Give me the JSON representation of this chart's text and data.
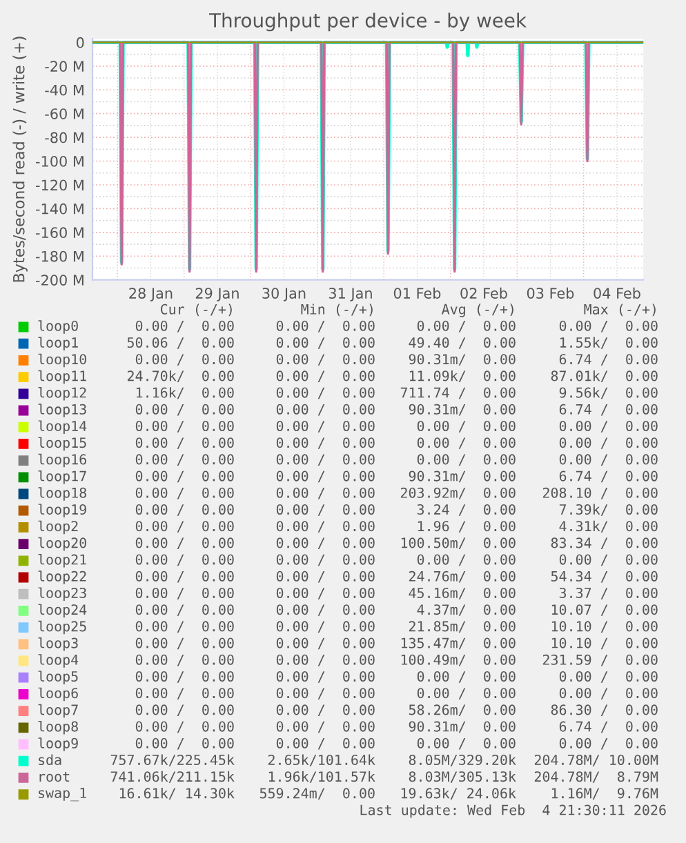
{
  "chart_data": {
    "type": "line",
    "title": "Throughput per device - by week",
    "ylabel": "Bytes/second read (-) / write (+)",
    "xlim": [
      "2026-01-27T15:00",
      "2026-02-04T21:30"
    ],
    "xticks": [
      {
        "value": "2026-01-28T00:00",
        "label": null
      },
      {
        "value": "2026-01-28T12:00",
        "label": "28 Jan"
      },
      {
        "value": "2026-01-29T00:00",
        "label": null
      },
      {
        "value": "2026-01-29T12:00",
        "label": "29 Jan"
      },
      {
        "value": "2026-01-30T00:00",
        "label": null
      },
      {
        "value": "2026-01-30T12:00",
        "label": "30 Jan"
      },
      {
        "value": "2026-01-31T00:00",
        "label": null
      },
      {
        "value": "2026-01-31T12:00",
        "label": "31 Jan"
      },
      {
        "value": "2026-02-01T00:00",
        "label": null
      },
      {
        "value": "2026-02-01T12:00",
        "label": "01 Feb"
      },
      {
        "value": "2026-02-02T00:00",
        "label": null
      },
      {
        "value": "2026-02-02T12:00",
        "label": "02 Feb"
      },
      {
        "value": "2026-02-03T00:00",
        "label": null
      },
      {
        "value": "2026-02-03T12:00",
        "label": "03 Feb"
      },
      {
        "value": "2026-02-04T00:00",
        "label": null
      },
      {
        "value": "2026-02-04T12:00",
        "label": "04 Feb"
      }
    ],
    "ylim": [
      -200,
      3
    ],
    "yticks": [
      0,
      {
        "value": -10,
        "label": null
      },
      {
        "value": -20,
        "label": "-20 M"
      },
      {
        "value": -30,
        "label": null
      },
      {
        "value": -40,
        "label": "-40 M"
      },
      {
        "value": -50,
        "label": null
      },
      {
        "value": -60,
        "label": "-60 M"
      },
      {
        "value": -70,
        "label": null
      },
      {
        "value": -80,
        "label": "-80 M"
      },
      {
        "value": -90,
        "label": null
      },
      {
        "value": -100,
        "label": "-100 M"
      },
      {
        "value": -110,
        "label": null
      },
      {
        "value": -120,
        "label": "-120 M"
      },
      {
        "value": -130,
        "label": null
      },
      {
        "value": -140,
        "label": "-140 M"
      },
      {
        "value": -150,
        "label": null
      },
      {
        "value": -160,
        "label": "-160 M"
      },
      {
        "value": -170,
        "label": null
      },
      {
        "value": -180,
        "label": "-180 M"
      },
      {
        "value": -190,
        "label": null
      },
      {
        "value": -200,
        "label": "-200 M"
      }
    ],
    "grid": true,
    "legend": "bottom",
    "series": [
      {
        "name": "loop0",
        "color": "#00cc00"
      },
      {
        "name": "loop1",
        "color": "#0066b3"
      },
      {
        "name": "loop10",
        "color": "#ff8000"
      },
      {
        "name": "loop11",
        "color": "#ffcc00"
      },
      {
        "name": "loop12",
        "color": "#330099"
      },
      {
        "name": "loop13",
        "color": "#990099"
      },
      {
        "name": "loop14",
        "color": "#ccff00"
      },
      {
        "name": "loop15",
        "color": "#ff0000"
      },
      {
        "name": "loop16",
        "color": "#808080"
      },
      {
        "name": "loop17",
        "color": "#008f00"
      },
      {
        "name": "loop18",
        "color": "#00487d"
      },
      {
        "name": "loop19",
        "color": "#b35a00"
      },
      {
        "name": "loop2",
        "color": "#b38f00"
      },
      {
        "name": "loop20",
        "color": "#6b006b"
      },
      {
        "name": "loop21",
        "color": "#8fb300"
      },
      {
        "name": "loop22",
        "color": "#b30000"
      },
      {
        "name": "loop23",
        "color": "#bebebe"
      },
      {
        "name": "loop24",
        "color": "#80ff80"
      },
      {
        "name": "loop25",
        "color": "#80c9ff"
      },
      {
        "name": "loop3",
        "color": "#ffc080"
      },
      {
        "name": "loop4",
        "color": "#ffe680"
      },
      {
        "name": "loop5",
        "color": "#aa80ff"
      },
      {
        "name": "loop6",
        "color": "#ee00cc"
      },
      {
        "name": "loop7",
        "color": "#ff8080"
      },
      {
        "name": "loop8",
        "color": "#666600"
      },
      {
        "name": "loop9",
        "color": "#ffbfff"
      },
      {
        "name": "sda",
        "color": "#00ffcc",
        "x": [
          "2026-01-27T15:00",
          "2026-01-28T01:00",
          "2026-01-28T01:30",
          "2026-01-28T02:00",
          "2026-01-29T01:30",
          "2026-01-29T02:00",
          "2026-01-29T02:30",
          "2026-01-30T01:30",
          "2026-01-30T02:00",
          "2026-01-30T02:30",
          "2026-01-31T01:30",
          "2026-01-31T02:00",
          "2026-01-31T02:30",
          "2026-02-01T01:00",
          "2026-02-01T01:30",
          "2026-02-01T02:00",
          "2026-02-01T22:30",
          "2026-02-01T22:50",
          "2026-02-01T23:10",
          "2026-02-02T01:00",
          "2026-02-02T01:30",
          "2026-02-02T02:00",
          "2026-02-02T06:00",
          "2026-02-02T06:15",
          "2026-02-02T06:30",
          "2026-02-02T09:15",
          "2026-02-02T09:30",
          "2026-02-02T09:45",
          "2026-02-03T01:00",
          "2026-02-03T01:30",
          "2026-02-03T02:00",
          "2026-02-04T00:50",
          "2026-02-04T01:20",
          "2026-02-04T01:50",
          "2026-02-04T21:30"
        ],
        "values": [
          0,
          0,
          -185,
          0,
          0,
          -191,
          0,
          0,
          -191,
          0,
          0,
          -191,
          0,
          0,
          -176,
          0,
          0,
          -4,
          0,
          0,
          -191,
          0,
          0,
          -11,
          0,
          0,
          -4,
          0,
          0,
          -67,
          0,
          0,
          -98,
          0,
          0
        ]
      },
      {
        "name": "root",
        "color": "#cc6699",
        "x": [
          "2026-01-27T15:00",
          "2026-01-28T01:00",
          "2026-01-28T01:30",
          "2026-01-28T02:00",
          "2026-01-29T01:30",
          "2026-01-29T02:00",
          "2026-01-29T02:30",
          "2026-01-30T01:30",
          "2026-01-30T02:00",
          "2026-01-30T02:30",
          "2026-01-31T01:30",
          "2026-01-31T02:00",
          "2026-01-31T02:30",
          "2026-02-01T01:00",
          "2026-02-01T01:30",
          "2026-02-01T02:00",
          "2026-02-02T01:00",
          "2026-02-02T01:30",
          "2026-02-02T02:00",
          "2026-02-03T01:00",
          "2026-02-03T01:30",
          "2026-02-03T02:00",
          "2026-02-04T00:50",
          "2026-02-04T01:20",
          "2026-02-04T01:50",
          "2026-02-04T21:30"
        ],
        "values": [
          0,
          0,
          -187,
          0,
          0,
          -193,
          0,
          0,
          -193,
          0,
          0,
          -193,
          0,
          0,
          -178,
          0,
          0,
          -193,
          0,
          0,
          -69,
          0,
          0,
          -100,
          0,
          0
        ]
      },
      {
        "name": "swap_1",
        "color": "#999900",
        "x": [
          "2026-01-27T15:00",
          "2026-02-04T21:30"
        ],
        "values": [
          0,
          0
        ]
      }
    ],
    "annotations": [
      "Cur (-/+)",
      "Min (-/+)",
      "Avg (-/+)",
      "Max (-/+)",
      "0.00 /  0.00",
      "0.00 /  0.00",
      "0.00 /  0.00",
      "0.00 /  0.00",
      "50.06 /  0.00",
      "0.00 /  0.00",
      "49.40 /  0.00",
      "1.55k/  0.00",
      "0.00 /  0.00",
      "0.00 /  0.00",
      "90.31m/  0.00",
      "6.74 /  0.00",
      "24.70k/  0.00",
      "0.00 /  0.00",
      "11.09k/  0.00",
      "87.01k/  0.00",
      "1.16k/  0.00",
      "0.00 /  0.00",
      "711.74 /  0.00",
      "9.56k/  0.00",
      "0.00 /  0.00",
      "0.00 /  0.00",
      "90.31m/  0.00",
      "6.74 /  0.00",
      "0.00 /  0.00",
      "0.00 /  0.00",
      "0.00 /  0.00",
      "0.00 /  0.00",
      "0.00 /  0.00",
      "0.00 /  0.00",
      "0.00 /  0.00",
      "0.00 /  0.00",
      "0.00 /  0.00",
      "0.00 /  0.00",
      "0.00 /  0.00",
      "0.00 /  0.00",
      "0.00 /  0.00",
      "0.00 /  0.00",
      "90.31m/  0.00",
      "6.74 /  0.00",
      "0.00 /  0.00",
      "0.00 /  0.00",
      "203.92m/  0.00",
      "208.10 /  0.00",
      "0.00 /  0.00",
      "0.00 /  0.00",
      "3.24 /  0.00",
      "7.39k/  0.00",
      "0.00 /  0.00",
      "0.00 /  0.00",
      "1.96 /  0.00",
      "4.31k/  0.00",
      "0.00 /  0.00",
      "0.00 /  0.00",
      "100.50m/  0.00",
      "83.34 /  0.00",
      "0.00 /  0.00",
      "0.00 /  0.00",
      "0.00 /  0.00",
      "0.00 /  0.00",
      "0.00 /  0.00",
      "0.00 /  0.00",
      "24.76m/  0.00",
      "54.34 /  0.00",
      "0.00 /  0.00",
      "0.00 /  0.00",
      "45.16m/  0.00",
      "3.37 /  0.00",
      "0.00 /  0.00",
      "0.00 /  0.00",
      "4.37m/  0.00",
      "10.07 /  0.00",
      "0.00 /  0.00",
      "0.00 /  0.00",
      "21.85m/  0.00",
      "10.10 /  0.00",
      "0.00 /  0.00",
      "0.00 /  0.00",
      "135.47m/  0.00",
      "10.10 /  0.00",
      "0.00 /  0.00",
      "0.00 /  0.00",
      "100.49m/  0.00",
      "231.59 /  0.00",
      "0.00 /  0.00",
      "0.00 /  0.00",
      "0.00 /  0.00",
      "0.00 /  0.00",
      "0.00 /  0.00",
      "0.00 /  0.00",
      "0.00 /  0.00",
      "0.00 /  0.00",
      "0.00 /  0.00",
      "0.00 /  0.00",
      "58.26m/  0.00",
      "86.30 /  0.00",
      "0.00 /  0.00",
      "0.00 /  0.00",
      "90.31m/  0.00",
      "6.74 /  0.00",
      "0.00 /  0.00",
      "0.00 /  0.00",
      "0.00 /  0.00",
      "0.00 /  0.00",
      "757.67k/225.45k",
      "2.65k/101.64k",
      "8.05M/329.20k",
      "204.78M/ 10.00M",
      "741.06k/211.15k",
      "1.96k/101.57k",
      "8.03M/305.13k",
      "204.78M/  8.79M",
      "16.61k/ 14.30k",
      "559.24m/  0.00",
      "19.63k/ 24.06k",
      "1.16M/  9.76M",
      "Last update: Wed Feb  4 21:30:11 2026"
    ]
  }
}
